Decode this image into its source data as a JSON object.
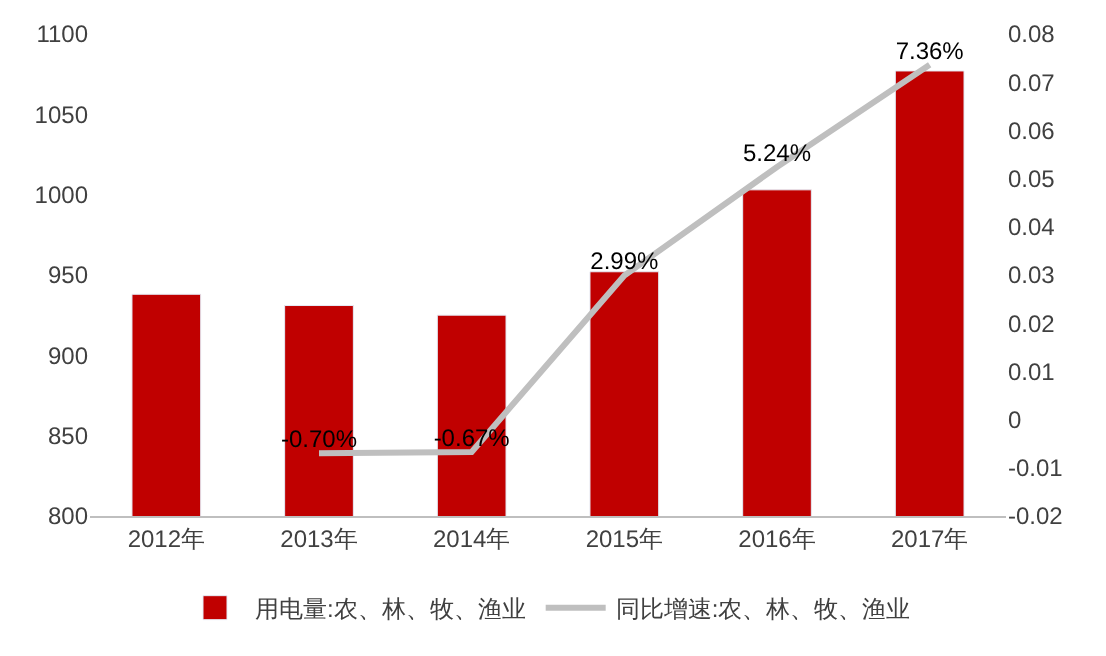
{
  "chart_data": {
    "type": "bar",
    "categories": [
      "2012年",
      "2013年",
      "2014年",
      "2015年",
      "2016年",
      "2017年"
    ],
    "series": [
      {
        "name": "用电量:农、林、牧、渔业",
        "color": "#c00000",
        "values": [
          938,
          931,
          925,
          952,
          1003,
          1077
        ]
      },
      {
        "name": "同比增速:农、林、牧、渔业",
        "type": "line",
        "axis": "y2",
        "color": "#bfbfbf",
        "marker": "none",
        "values": [
          null,
          -0.007,
          -0.0067,
          0.0299,
          0.0524,
          0.0736
        ],
        "value_labels": [
          null,
          "-0.70%",
          "-0.67%",
          "2.99%",
          "5.24%",
          "7.36%"
        ]
      }
    ],
    "ylim": [
      800,
      1100
    ],
    "yticks": [
      800,
      850,
      900,
      950,
      1000,
      1050,
      1100
    ],
    "y2lim": [
      -0.02,
      0.08
    ],
    "y2ticks": [
      -0.02,
      -0.01,
      0,
      0.01,
      0.02,
      0.03,
      0.04,
      0.05,
      0.06,
      0.07,
      0.08
    ],
    "legend": "bottom"
  }
}
